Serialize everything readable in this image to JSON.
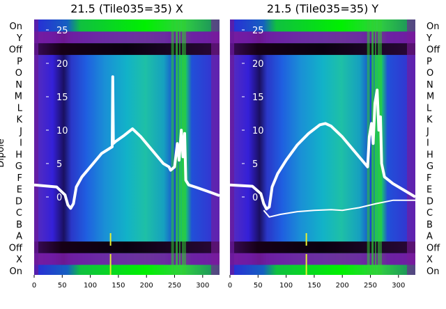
{
  "chart_data": [
    {
      "type": "heatmap",
      "title": "21.5 (Tile035=35) X",
      "ylabel": "Dipole",
      "xlim": [
        0,
        330
      ],
      "x_ticks": [
        0,
        50,
        100,
        150,
        200,
        250,
        300
      ],
      "inner_ticks": [
        25,
        20,
        15,
        10,
        5,
        0
      ],
      "row_labels": [
        "On",
        "Y",
        "Off",
        "P",
        "O",
        "N",
        "M",
        "L",
        "K",
        "J",
        "I",
        "H",
        "G",
        "F",
        "E",
        "D",
        "C",
        "B",
        "A",
        "Off",
        "X",
        "On"
      ],
      "overlay_series": [
        {
          "x": [
            0,
            40,
            55,
            60,
            65,
            70,
            75,
            85,
            100,
            120,
            135,
            139,
            140,
            141,
            145,
            160,
            175,
            190,
            210,
            230,
            240,
            243,
            250,
            255,
            258,
            262,
            265,
            268,
            270,
            275,
            290,
            310,
            330
          ],
          "y": [
            1.8,
            1.5,
            0.3,
            -1.2,
            -1.7,
            -1.0,
            1.5,
            3.0,
            4.5,
            6.5,
            7.3,
            7.5,
            18.0,
            8.0,
            8.3,
            9.2,
            10.2,
            9.0,
            7.0,
            5.0,
            4.5,
            4.0,
            4.5,
            8.0,
            5.5,
            10.0,
            6.0,
            9.5,
            2.5,
            1.8,
            1.4,
            0.8,
            0.2
          ]
        }
      ]
    },
    {
      "type": "heatmap",
      "title": "21.5 (Tile035=35) Y",
      "xlim": [
        0,
        330
      ],
      "x_ticks": [
        0,
        50,
        100,
        150,
        200,
        250,
        300
      ],
      "inner_ticks": [
        25,
        20,
        15,
        10,
        5,
        0
      ],
      "row_labels": [
        "On",
        "Y",
        "Off",
        "P",
        "O",
        "N",
        "M",
        "L",
        "K",
        "J",
        "I",
        "H",
        "G",
        "F",
        "E",
        "D",
        "C",
        "B",
        "A",
        "Off",
        "X",
        "On"
      ],
      "overlay_series": [
        {
          "x": [
            0,
            40,
            55,
            60,
            65,
            70,
            75,
            85,
            100,
            120,
            140,
            160,
            170,
            180,
            200,
            220,
            240,
            245,
            248,
            252,
            255,
            258,
            262,
            265,
            268,
            270,
            275,
            290,
            310,
            330
          ],
          "y": [
            1.8,
            1.6,
            0.5,
            -1.0,
            -1.8,
            -1.5,
            1.5,
            3.5,
            5.5,
            7.8,
            9.5,
            10.8,
            11.0,
            10.6,
            9.0,
            7.0,
            5.0,
            4.5,
            9.0,
            11.0,
            8.0,
            14.0,
            16.0,
            10.0,
            12.0,
            5.0,
            3.0,
            2.0,
            1.0,
            0.0
          ]
        },
        {
          "x": [
            60,
            70,
            90,
            120,
            150,
            180,
            200,
            230,
            260,
            290,
            330
          ],
          "y": [
            -2.0,
            -3.0,
            -2.6,
            -2.2,
            -2.0,
            -1.9,
            -2.0,
            -1.6,
            -1.0,
            -0.5,
            -0.5
          ]
        }
      ]
    }
  ]
}
